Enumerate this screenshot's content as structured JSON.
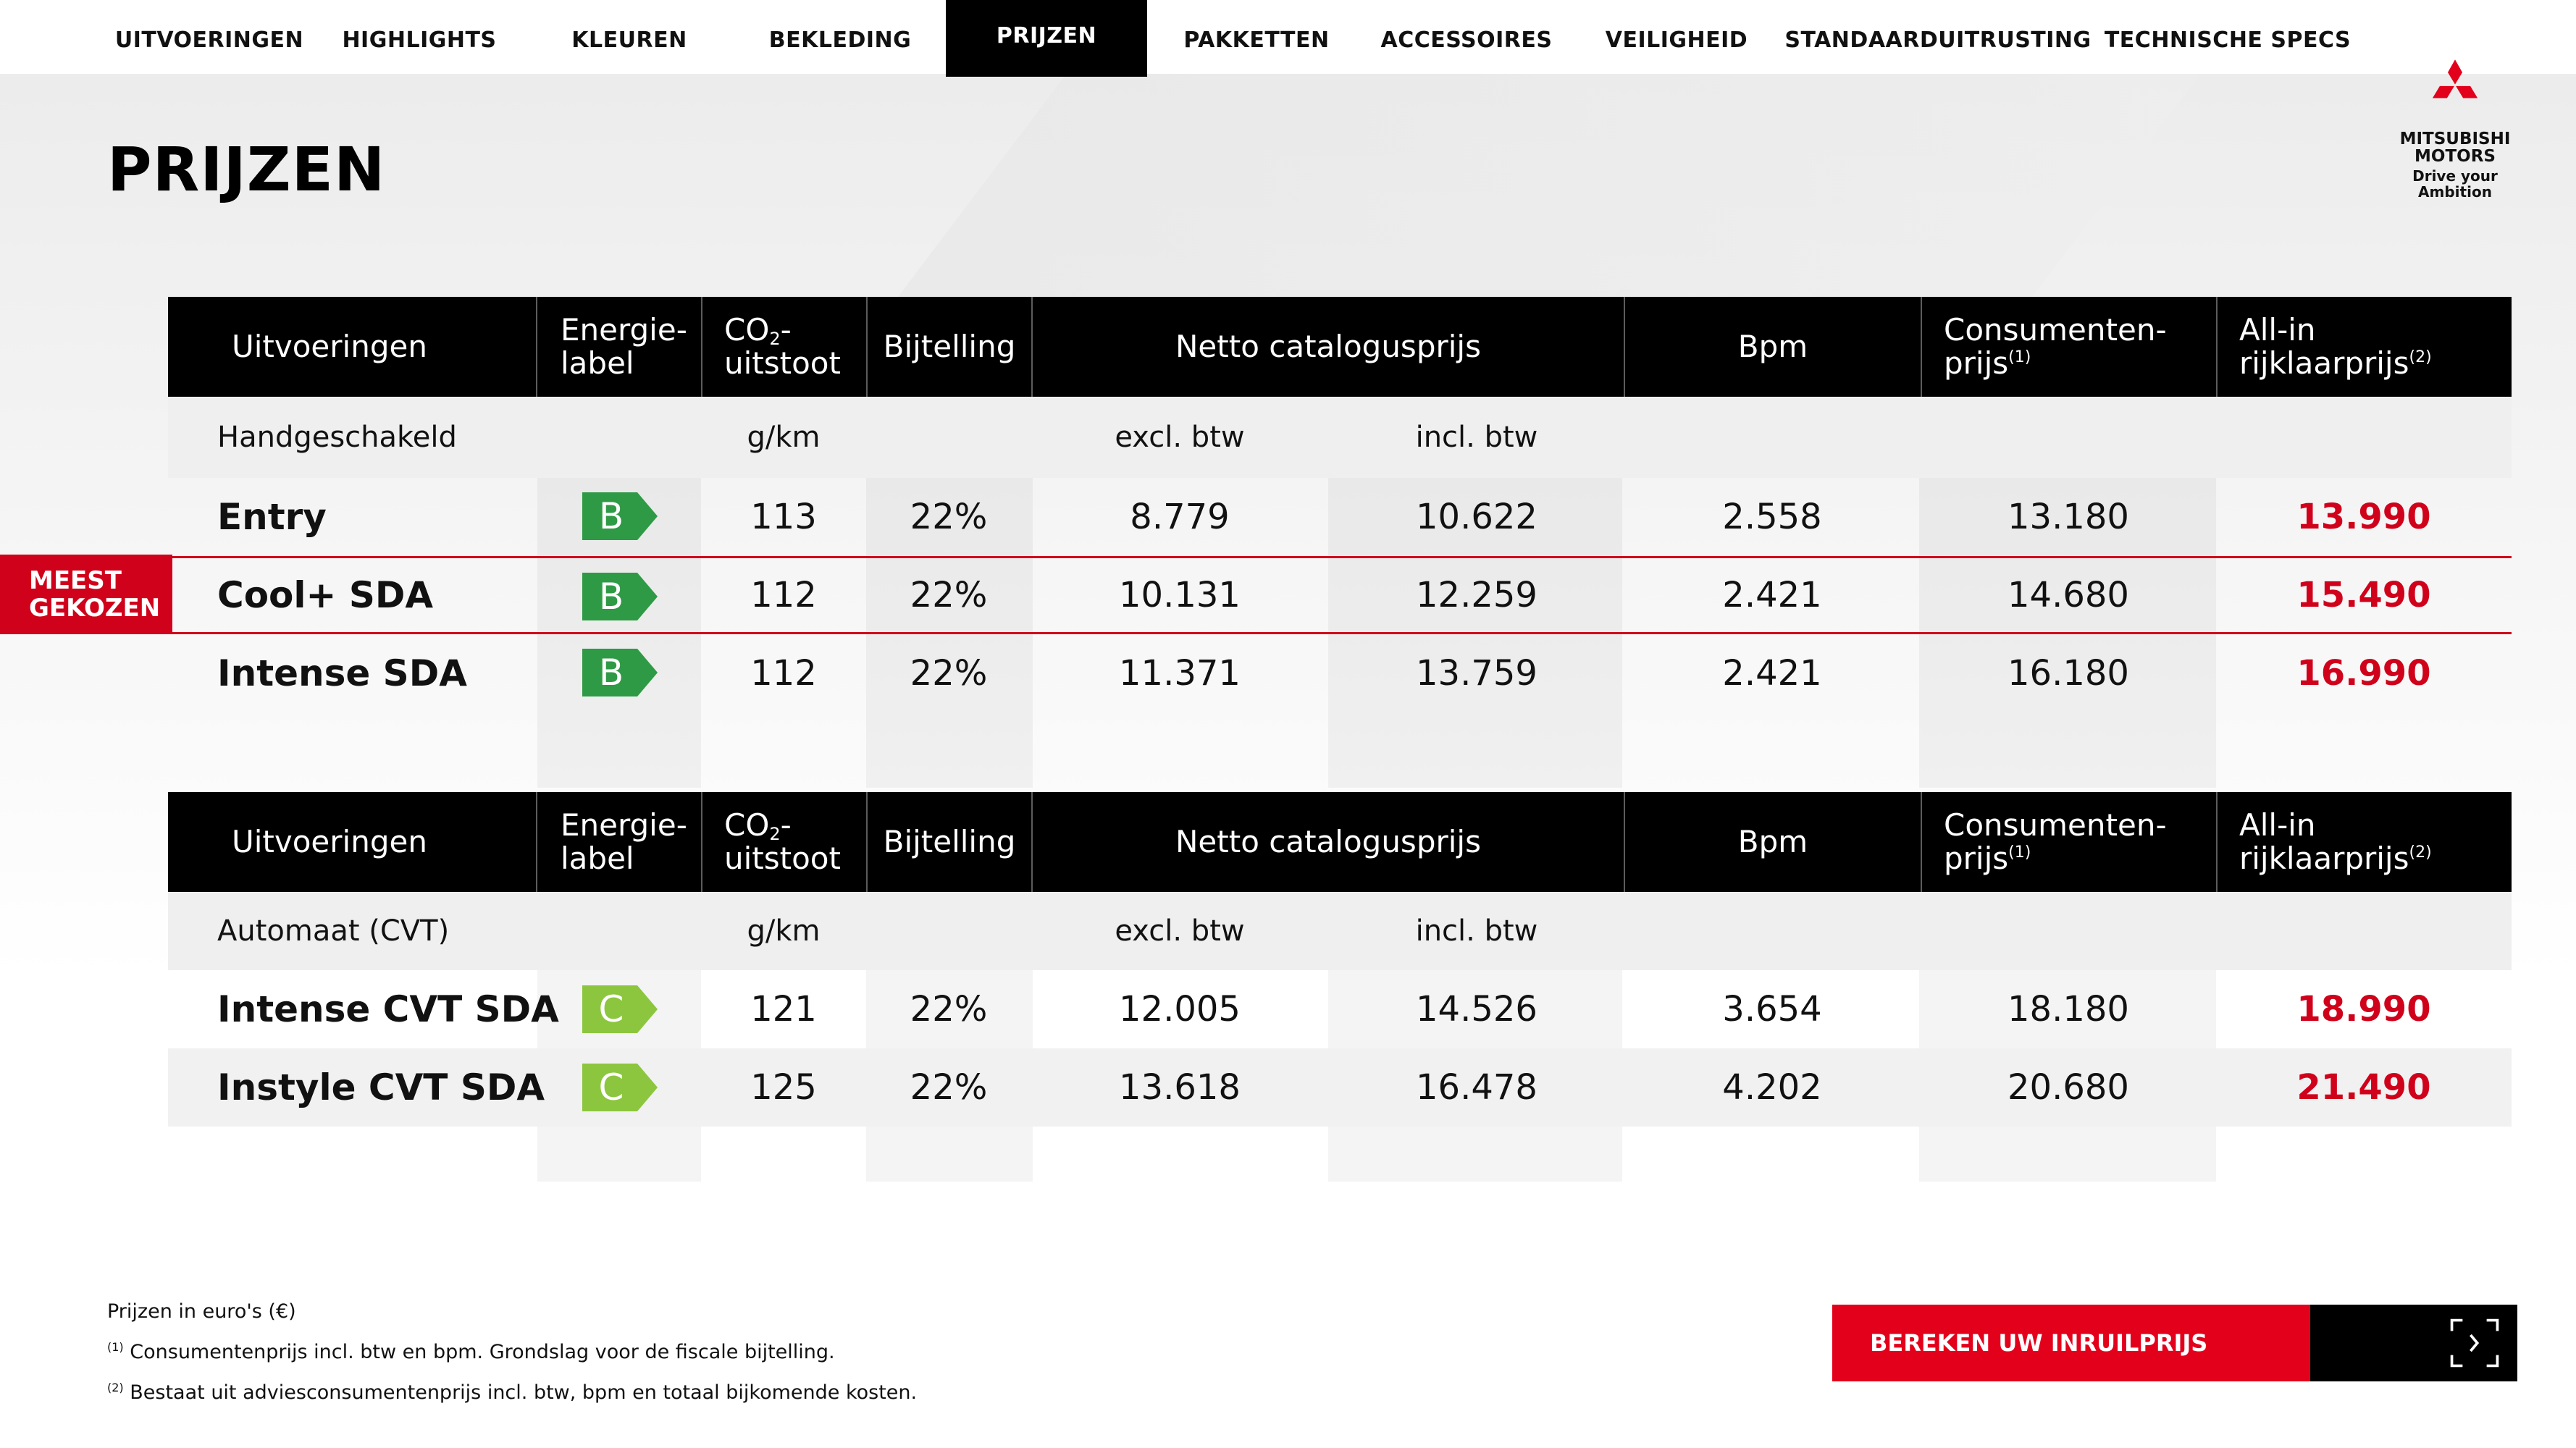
{
  "nav": {
    "items": [
      "UITVOERINGEN",
      "HIGHLIGHTS",
      "KLEUREN",
      "BEKLEDING",
      "PRIJZEN",
      "PAKKETTEN",
      "ACCESSOIRES",
      "VEILIGHEID",
      "STANDAARDUITRUSTING",
      "TECHNISCHE SPECS"
    ],
    "active": "PRIJZEN"
  },
  "brand": {
    "line1": "MITSUBISHI",
    "line2": "MOTORS",
    "tagline": "Drive your Ambition",
    "color": "#e3001b"
  },
  "page_title": "PRIJZEN",
  "table_header": {
    "uitvoeringen": "Uitvoeringen",
    "energie_1": "Energie-",
    "energie_2": "label",
    "co2_1": "CO",
    "co2_sub": "2",
    "co2_dash": "-",
    "co2_2": "uitstoot",
    "bijtelling": "Bijtelling",
    "netto": "Netto catalogusprijs",
    "bpm": "Bpm",
    "consumenten_1": "Consumenten-",
    "consumenten_2": "prijs",
    "consumenten_sup": "(1)",
    "allin_1": "All-in",
    "allin_2": "rijklaarprijs",
    "allin_sup": "(2)"
  },
  "units": {
    "gkm": "g/km",
    "excl": "excl. btw",
    "incl": "incl. btw"
  },
  "highlight_badge": {
    "line1": "MEEST",
    "line2": "GEKOZEN"
  },
  "tables": [
    {
      "group": "Handgeschakeld",
      "rows": [
        {
          "name": "Entry",
          "label": "B",
          "co2": "113",
          "bijtelling": "22%",
          "excl": "8.779",
          "incl": "10.622",
          "bpm": "2.558",
          "consument": "13.180",
          "allin": "13.990"
        },
        {
          "name": "Cool+ SDA",
          "label": "B",
          "co2": "112",
          "bijtelling": "22%",
          "excl": "10.131",
          "incl": "12.259",
          "bpm": "2.421",
          "consument": "14.680",
          "allin": "15.490"
        },
        {
          "name": "Intense SDA",
          "label": "B",
          "co2": "112",
          "bijtelling": "22%",
          "excl": "11.371",
          "incl": "13.759",
          "bpm": "2.421",
          "consument": "16.180",
          "allin": "16.990"
        }
      ]
    },
    {
      "group": "Automaat (CVT)",
      "rows": [
        {
          "name": "Intense CVT SDA",
          "label": "C",
          "co2": "121",
          "bijtelling": "22%",
          "excl": "12.005",
          "incl": "14.526",
          "bpm": "3.654",
          "consument": "18.180",
          "allin": "18.990"
        },
        {
          "name": "Instyle CVT SDA",
          "label": "C",
          "co2": "125",
          "bijtelling": "22%",
          "excl": "13.618",
          "incl": "16.478",
          "bpm": "4.202",
          "consument": "20.680",
          "allin": "21.490"
        }
      ]
    }
  ],
  "energy_colors": {
    "B": "#2f9a45",
    "C": "#8cc63e"
  },
  "footnotes": {
    "f0": "Prijzen in euro's (€)",
    "f1_sup": "(1)",
    "f1": "Consumentenprijs incl. btw en bpm. Grondslag voor de fiscale bijtelling.",
    "f2_sup": "(2)",
    "f2": "Bestaat uit adviesconsumentenprijs incl. btw, bpm en totaal bijkomende kosten."
  },
  "cta": {
    "label": "BEREKEN UW INRUILPRIJS"
  }
}
